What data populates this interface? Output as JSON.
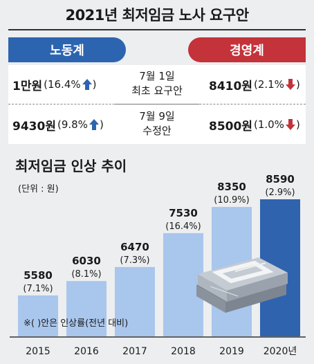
{
  "header": {
    "title": "2021년 최저임금 노사 요구안"
  },
  "labor": {
    "label": "노동계",
    "row1_value": "1만원",
    "row1_pct": "(16.4%",
    "row2_value": "9430원",
    "row2_pct": "(9.8%",
    "direction": "up"
  },
  "management": {
    "label": "경영계",
    "row1_value": "8410원",
    "row1_pct": "(2.1%",
    "row2_value": "8500원",
    "row2_pct": "(1.0%",
    "direction": "down"
  },
  "stages": {
    "first_line1": "7월 1일",
    "first_line2": "최초 요구안",
    "second_line1": "7월 9일",
    "second_line2": "수정안"
  },
  "colors": {
    "labor": "#2c64b0",
    "management": "#c4323a",
    "bar": "#a9c6ec",
    "bar_highlight": "#2f63ae"
  },
  "chart_data": {
    "type": "bar",
    "title": "최저임금 인상 추이",
    "unit_label": "(단위 : 원)",
    "footnote": "※( )안은 인상률(전년 대비)",
    "categories": [
      "2015",
      "2016",
      "2017",
      "2018",
      "2019",
      "2020년"
    ],
    "values": [
      5580,
      6030,
      6470,
      7530,
      8350,
      8590
    ],
    "value_labels": [
      "5580",
      "6030",
      "6470",
      "7530",
      "8350",
      "8590"
    ],
    "rate_labels": [
      "(7.1%)",
      "(8.1%)",
      "(7.3%)",
      "(16.4%)",
      "(10.9%)",
      "(2.9%)"
    ],
    "highlight_index": 5,
    "ylim": [
      0,
      9200
    ]
  }
}
